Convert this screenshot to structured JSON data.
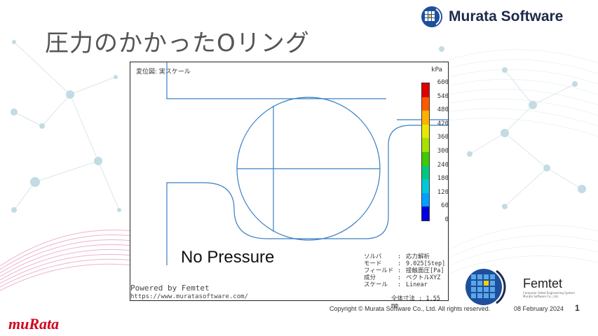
{
  "slide": {
    "title": "圧力のかかったOリング",
    "brand": "Murata Software",
    "footer_copyright": "Copyright © Murata Software Co., Ltd. All rights reserved.",
    "date": "08 February 2024",
    "page_number": "1",
    "murata_logo": "muRata",
    "femtet_name": "Femtet",
    "femtet_tagline_1": "Computer Aided Engineering System",
    "femtet_tagline_2": "Murata Software Co., Ltd."
  },
  "simulation": {
    "header": "変位図: 実スケール",
    "unit": "kPa",
    "colorbar_labels": [
      "600",
      "540",
      "480",
      "420",
      "360",
      "300",
      "240",
      "180",
      "120",
      "60",
      "0"
    ],
    "colorbar_colors": [
      "#e00000",
      "#ff5a00",
      "#ffb000",
      "#e8e800",
      "#a8e000",
      "#40c800",
      "#00c880",
      "#00c8d8",
      "#00a0ff",
      "#0000e0"
    ],
    "overlay_label": "No Pressure",
    "info": [
      {
        "key": "ソルバ",
        "value": "応力解析"
      },
      {
        "key": "モード",
        "value": "9.025[Step]"
      },
      {
        "key": "フィールド",
        "value": "接触面圧[Pa]"
      },
      {
        "key": "成分",
        "value": "ベクトルXYZ"
      },
      {
        "key": "スケール",
        "value": "Linear"
      }
    ],
    "powered_by": "Powered by Femtet",
    "url": "https://www.muratasoftware.com/",
    "scale_text": "全体寸法 : 1.55 mm",
    "outline_color": "#3a7fc4"
  }
}
